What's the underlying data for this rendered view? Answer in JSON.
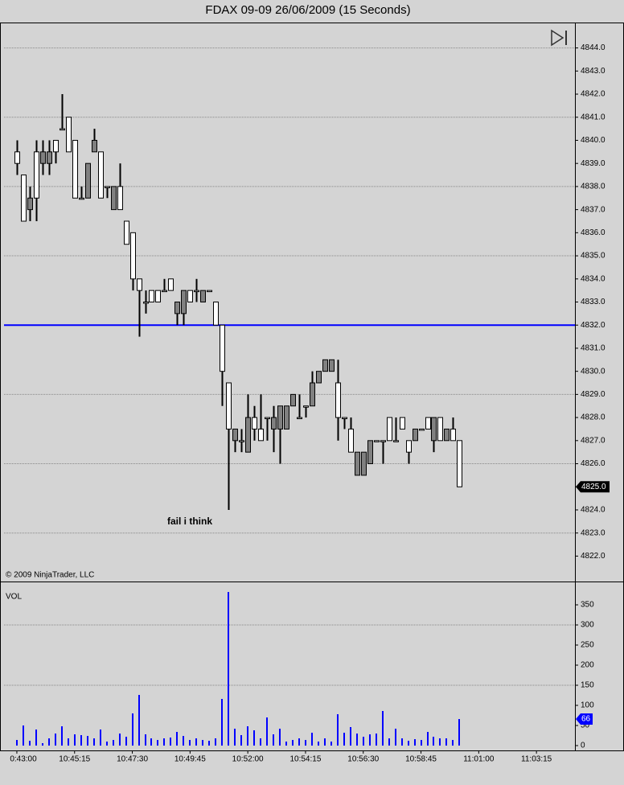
{
  "chart_data": [
    {
      "type": "candlestick",
      "title": "FDAX 09-09  26/06/2009 (15 Seconds)",
      "annotation": "fail i think",
      "copyright": "© 2009 NinjaTrader, LLC",
      "up_color": "#808080",
      "down_color": "#ffffff",
      "open": [
        4839.5,
        4838.5,
        4837,
        4839.5,
        4839,
        4839,
        4840,
        4840.5,
        4841,
        4840,
        4837.5,
        4837.5,
        4839.5,
        4839.5,
        4838,
        4837,
        4838,
        4836.5,
        4836,
        4834,
        4833,
        4833.5,
        4833.5,
        4833.5,
        4834,
        4832.5,
        4832.5,
        4833.5,
        4833.5,
        4833,
        4833.5,
        4833,
        4832,
        4829.5,
        4827,
        4827,
        4826.5,
        4828,
        4827.5,
        4828,
        4827.5,
        4827.5,
        4827.5,
        4828.5,
        4828,
        4828.5,
        4828.5,
        4829.5,
        4830,
        4830,
        4829.5,
        4828,
        4827.5,
        4825.5,
        4825.5,
        4826,
        4827,
        4827,
        4828,
        4827,
        4828,
        4827,
        4827,
        4827.5,
        4828,
        4827,
        4828,
        4827,
        4827.5,
        4827
      ],
      "high": [
        4840,
        4838.5,
        4838,
        4840,
        4840,
        4840,
        4840,
        4842,
        4841,
        4840,
        4838,
        4839,
        4840.5,
        4839.5,
        4838,
        4838,
        4839,
        4836.5,
        4836,
        4834,
        4833.5,
        4833.5,
        4833.5,
        4834,
        4834,
        4833,
        4833.5,
        4833.5,
        4834,
        4833.5,
        4833.5,
        4833,
        4832,
        4829.5,
        4827.5,
        4827.5,
        4829,
        4828.5,
        4829,
        4828,
        4828.5,
        4828.5,
        4828.5,
        4829,
        4829,
        4828.5,
        4830,
        4830,
        4830.5,
        4830.5,
        4830.5,
        4828,
        4828,
        4826.5,
        4826.5,
        4827,
        4827,
        4827,
        4828,
        4828,
        4828,
        4827,
        4827.5,
        4827.5,
        4828,
        4828,
        4828,
        4827.5,
        4828,
        4827
      ],
      "low": [
        4838.5,
        4836.5,
        4836.5,
        4836.5,
        4838.5,
        4838.5,
        4839,
        4840.5,
        4839.5,
        4837.5,
        4837.5,
        4837.5,
        4839.5,
        4837.5,
        4837.5,
        4837,
        4837,
        4835.5,
        4833.5,
        4831.5,
        4832.5,
        4833,
        4833,
        4833.5,
        4833.5,
        4832,
        4832,
        4833,
        4833,
        4833,
        4833.5,
        4832,
        4828.5,
        4824,
        4826.5,
        4826.5,
        4826.5,
        4827,
        4827,
        4827,
        4826.5,
        4826,
        4827.5,
        4828.5,
        4828,
        4828,
        4828.5,
        4829.5,
        4830,
        4830,
        4827,
        4827.5,
        4826.5,
        4825.5,
        4825.5,
        4826,
        4827,
        4826,
        4827,
        4827,
        4827.5,
        4826,
        4827,
        4827.5,
        4827.5,
        4826.5,
        4827,
        4827,
        4827,
        4825
      ],
      "close": [
        4839,
        4836.5,
        4837.5,
        4837.5,
        4839.5,
        4839.5,
        4839.5,
        4840.5,
        4839.5,
        4837.5,
        4837.5,
        4839,
        4840,
        4837.5,
        4838,
        4838,
        4837,
        4835.5,
        4834,
        4833.5,
        4833,
        4833,
        4833,
        4833.5,
        4833.5,
        4833,
        4833.5,
        4833,
        4833.5,
        4833.5,
        4833.5,
        4832,
        4830,
        4827.5,
        4827.5,
        4827,
        4828,
        4827.5,
        4827,
        4828,
        4828,
        4828.5,
        4828.5,
        4829,
        4828,
        4828.5,
        4829.5,
        4830,
        4830.5,
        4830.5,
        4828,
        4828,
        4826.5,
        4826.5,
        4826.5,
        4827,
        4827,
        4827,
        4827,
        4827,
        4827.5,
        4826.5,
        4827.5,
        4827.5,
        4827.5,
        4828,
        4827,
        4827.5,
        4827,
        4825
      ],
      "last_label": "4825.0",
      "reference_line": {
        "value": 4832,
        "color": "#0000ff"
      },
      "ylim": [
        4820.9,
        4845.1
      ],
      "yticks": [
        {
          "value": 4822,
          "label": "4822.0"
        },
        {
          "value": 4823,
          "label": "4823.0"
        },
        {
          "value": 4824,
          "label": "4824.0"
        },
        {
          "value": 4825,
          "label": "4825.0"
        },
        {
          "value": 4826,
          "label": "4826.0"
        },
        {
          "value": 4827,
          "label": "4827.0"
        },
        {
          "value": 4828,
          "label": "4828.0"
        },
        {
          "value": 4829,
          "label": "4829.0"
        },
        {
          "value": 4830,
          "label": "4830.0"
        },
        {
          "value": 4831,
          "label": "4831.0"
        },
        {
          "value": 4832,
          "label": "4832.0"
        },
        {
          "value": 4833,
          "label": "4833.0"
        },
        {
          "value": 4834,
          "label": "4834.0"
        },
        {
          "value": 4835,
          "label": "4835.0"
        },
        {
          "value": 4836,
          "label": "4836.0"
        },
        {
          "value": 4837,
          "label": "4837.0"
        },
        {
          "value": 4838,
          "label": "4838.0"
        },
        {
          "value": 4839,
          "label": "4839.0"
        },
        {
          "value": 4840,
          "label": "4840.0"
        },
        {
          "value": 4841,
          "label": "4841.0"
        },
        {
          "value": 4842,
          "label": "4842.0"
        },
        {
          "value": 4843,
          "label": "4843.0"
        },
        {
          "value": 4844,
          "label": "4844.0"
        }
      ],
      "grid": true
    },
    {
      "type": "bar",
      "label": "VOL",
      "color": "#0000ff",
      "values": [
        14,
        50,
        12,
        40,
        6,
        18,
        30,
        48,
        18,
        28,
        26,
        24,
        18,
        40,
        10,
        14,
        30,
        22,
        80,
        126,
        28,
        18,
        14,
        18,
        20,
        34,
        24,
        14,
        18,
        14,
        12,
        18,
        116,
        382,
        42,
        26,
        48,
        38,
        18,
        70,
        28,
        42,
        10,
        14,
        18,
        14,
        32,
        10,
        18,
        10,
        78,
        32,
        46,
        30,
        22,
        28,
        30,
        86,
        18,
        42,
        18,
        12,
        16,
        14,
        34,
        22,
        18,
        18,
        14,
        66
      ],
      "ylim": [
        -12,
        408
      ],
      "yticks": [
        0,
        50,
        100,
        150,
        200,
        250,
        300,
        350
      ],
      "xlim": [
        -2,
        87
      ],
      "xticks": [
        {
          "value": 0,
          "label": "0:43:00"
        },
        {
          "value": 9,
          "label": "10:45:15"
        },
        {
          "value": 18,
          "label": "10:47:30"
        },
        {
          "value": 27,
          "label": "10:49:45"
        },
        {
          "value": 36,
          "label": "10:52:00"
        },
        {
          "value": 45,
          "label": "10:54:15"
        },
        {
          "value": 54,
          "label": "10:56:30"
        },
        {
          "value": 63,
          "label": "10:58:45"
        },
        {
          "value": 72,
          "label": "11:01:00"
        },
        {
          "value": 81,
          "label": "11:03:15"
        }
      ],
      "grid": true
    }
  ]
}
